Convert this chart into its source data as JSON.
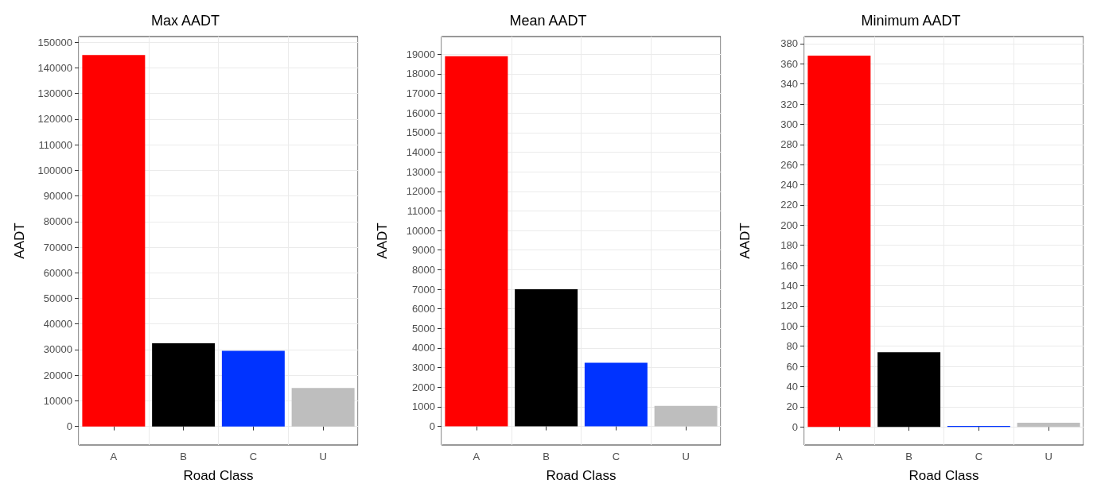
{
  "chart_data": [
    {
      "type": "bar",
      "title": "Max AADT",
      "xlabel": "Road Class",
      "ylabel": "AADT",
      "categories": [
        "A",
        "B",
        "C",
        "U"
      ],
      "values": [
        145000,
        32500,
        29500,
        15000
      ],
      "colors": [
        "#ff0000",
        "#000000",
        "#0033ff",
        "#bebebe"
      ],
      "ylim": [
        -7250,
        152250
      ],
      "yticks": [
        0,
        10000,
        20000,
        30000,
        40000,
        50000,
        60000,
        70000,
        80000,
        90000,
        100000,
        110000,
        120000,
        130000,
        140000,
        150000
      ],
      "grid": true
    },
    {
      "type": "bar",
      "title": "Mean AADT",
      "xlabel": "Road Class",
      "ylabel": "AADT",
      "categories": [
        "A",
        "B",
        "C",
        "U"
      ],
      "values": [
        18900,
        7000,
        3250,
        1050
      ],
      "colors": [
        "#ff0000",
        "#000000",
        "#0033ff",
        "#bebebe"
      ],
      "ylim": [
        -950,
        19900
      ],
      "yticks": [
        0,
        1000,
        2000,
        3000,
        4000,
        5000,
        6000,
        7000,
        8000,
        9000,
        10000,
        11000,
        12000,
        13000,
        14000,
        15000,
        16000,
        17000,
        18000,
        19000
      ],
      "grid": true
    },
    {
      "type": "bar",
      "title": "Minimum AADT",
      "xlabel": "Road Class",
      "ylabel": "AADT",
      "categories": [
        "A",
        "B",
        "C",
        "U"
      ],
      "values": [
        368,
        74,
        1,
        4
      ],
      "colors": [
        "#ff0000",
        "#000000",
        "#0033ff",
        "#bebebe"
      ],
      "ylim": [
        -18,
        387
      ],
      "yticks": [
        0,
        20,
        40,
        60,
        80,
        100,
        120,
        140,
        160,
        180,
        200,
        220,
        240,
        260,
        280,
        300,
        320,
        340,
        360,
        380
      ],
      "grid": true
    }
  ]
}
